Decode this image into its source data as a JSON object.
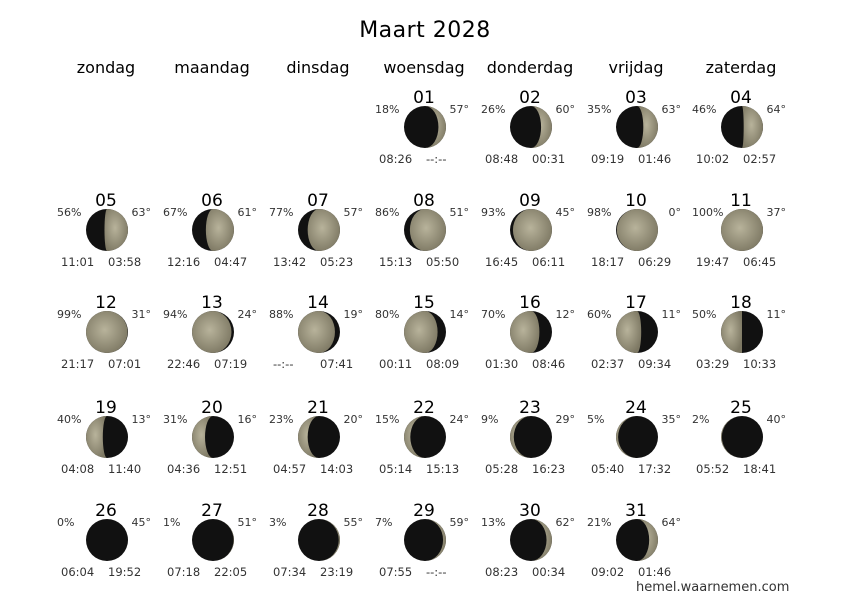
{
  "title": "Maart 2028",
  "weekdays": [
    "zondag",
    "maandag",
    "dinsdag",
    "woensdag",
    "donderdag",
    "vrijdag",
    "zaterdag"
  ],
  "colors": {
    "lit": "#a9a48c",
    "lit_shadow": "#7d7863",
    "dark": "#111111",
    "text": "#333333"
  },
  "credit": "hemel.waarnemen.com",
  "days": [
    {
      "day": "01",
      "col": 3,
      "row": 0,
      "illum": "18%",
      "alt": "57°",
      "rise": "08:26",
      "set": "--:--",
      "waxing": true,
      "frac": 0.18
    },
    {
      "day": "02",
      "col": 4,
      "row": 0,
      "illum": "26%",
      "alt": "60°",
      "rise": "08:48",
      "set": "00:31",
      "waxing": true,
      "frac": 0.26
    },
    {
      "day": "03",
      "col": 5,
      "row": 0,
      "illum": "35%",
      "alt": "63°",
      "rise": "09:19",
      "set": "01:46",
      "waxing": true,
      "frac": 0.35
    },
    {
      "day": "04",
      "col": 6,
      "row": 0,
      "illum": "46%",
      "alt": "64°",
      "rise": "10:02",
      "set": "02:57",
      "waxing": true,
      "frac": 0.46
    },
    {
      "day": "05",
      "col": 0,
      "row": 1,
      "illum": "56%",
      "alt": "63°",
      "rise": "11:01",
      "set": "03:58",
      "waxing": true,
      "frac": 0.56
    },
    {
      "day": "06",
      "col": 1,
      "row": 1,
      "illum": "67%",
      "alt": "61°",
      "rise": "12:16",
      "set": "04:47",
      "waxing": true,
      "frac": 0.67
    },
    {
      "day": "07",
      "col": 2,
      "row": 1,
      "illum": "77%",
      "alt": "57°",
      "rise": "13:42",
      "set": "05:23",
      "waxing": true,
      "frac": 0.77
    },
    {
      "day": "08",
      "col": 3,
      "row": 1,
      "illum": "86%",
      "alt": "51°",
      "rise": "15:13",
      "set": "05:50",
      "waxing": true,
      "frac": 0.86
    },
    {
      "day": "09",
      "col": 4,
      "row": 1,
      "illum": "93%",
      "alt": "45°",
      "rise": "16:45",
      "set": "06:11",
      "waxing": true,
      "frac": 0.93
    },
    {
      "day": "10",
      "col": 5,
      "row": 1,
      "illum": "98%",
      "alt": "0°",
      "rise": "18:17",
      "set": "06:29",
      "waxing": true,
      "frac": 0.98
    },
    {
      "day": "11",
      "col": 6,
      "row": 1,
      "illum": "100%",
      "alt": "37°",
      "rise": "19:47",
      "set": "06:45",
      "waxing": true,
      "frac": 1.0
    },
    {
      "day": "12",
      "col": 0,
      "row": 2,
      "illum": "99%",
      "alt": "31°",
      "rise": "21:17",
      "set": "07:01",
      "waxing": false,
      "frac": 0.99
    },
    {
      "day": "13",
      "col": 1,
      "row": 2,
      "illum": "94%",
      "alt": "24°",
      "rise": "22:46",
      "set": "07:19",
      "waxing": false,
      "frac": 0.94
    },
    {
      "day": "14",
      "col": 2,
      "row": 2,
      "illum": "88%",
      "alt": "19°",
      "rise": "--:--",
      "set": "07:41",
      "waxing": false,
      "frac": 0.88
    },
    {
      "day": "15",
      "col": 3,
      "row": 2,
      "illum": "80%",
      "alt": "14°",
      "rise": "00:11",
      "set": "08:09",
      "waxing": false,
      "frac": 0.8
    },
    {
      "day": "16",
      "col": 4,
      "row": 2,
      "illum": "70%",
      "alt": "12°",
      "rise": "01:30",
      "set": "08:46",
      "waxing": false,
      "frac": 0.7
    },
    {
      "day": "17",
      "col": 5,
      "row": 2,
      "illum": "60%",
      "alt": "11°",
      "rise": "02:37",
      "set": "09:34",
      "waxing": false,
      "frac": 0.6
    },
    {
      "day": "18",
      "col": 6,
      "row": 2,
      "illum": "50%",
      "alt": "11°",
      "rise": "03:29",
      "set": "10:33",
      "waxing": false,
      "frac": 0.5
    },
    {
      "day": "19",
      "col": 0,
      "row": 3,
      "illum": "40%",
      "alt": "13°",
      "rise": "04:08",
      "set": "11:40",
      "waxing": false,
      "frac": 0.4
    },
    {
      "day": "20",
      "col": 1,
      "row": 3,
      "illum": "31%",
      "alt": "16°",
      "rise": "04:36",
      "set": "12:51",
      "waxing": false,
      "frac": 0.31
    },
    {
      "day": "21",
      "col": 2,
      "row": 3,
      "illum": "23%",
      "alt": "20°",
      "rise": "04:57",
      "set": "14:03",
      "waxing": false,
      "frac": 0.23
    },
    {
      "day": "22",
      "col": 3,
      "row": 3,
      "illum": "15%",
      "alt": "24°",
      "rise": "05:14",
      "set": "15:13",
      "waxing": false,
      "frac": 0.15
    },
    {
      "day": "23",
      "col": 4,
      "row": 3,
      "illum": "9%",
      "alt": "29°",
      "rise": "05:28",
      "set": "16:23",
      "waxing": false,
      "frac": 0.09
    },
    {
      "day": "24",
      "col": 5,
      "row": 3,
      "illum": "5%",
      "alt": "35°",
      "rise": "05:40",
      "set": "17:32",
      "waxing": false,
      "frac": 0.05
    },
    {
      "day": "25",
      "col": 6,
      "row": 3,
      "illum": "2%",
      "alt": "40°",
      "rise": "05:52",
      "set": "18:41",
      "waxing": false,
      "frac": 0.02
    },
    {
      "day": "26",
      "col": 0,
      "row": 4,
      "illum": "0%",
      "alt": "45°",
      "rise": "06:04",
      "set": "19:52",
      "waxing": true,
      "frac": 0.0
    },
    {
      "day": "27",
      "col": 1,
      "row": 4,
      "illum": "1%",
      "alt": "51°",
      "rise": "07:18",
      "set": "22:05",
      "waxing": true,
      "frac": 0.01
    },
    {
      "day": "28",
      "col": 2,
      "row": 4,
      "illum": "3%",
      "alt": "55°",
      "rise": "07:34",
      "set": "23:19",
      "waxing": true,
      "frac": 0.03
    },
    {
      "day": "29",
      "col": 3,
      "row": 4,
      "illum": "7%",
      "alt": "59°",
      "rise": "07:55",
      "set": "--:--",
      "waxing": true,
      "frac": 0.07
    },
    {
      "day": "30",
      "col": 4,
      "row": 4,
      "illum": "13%",
      "alt": "62°",
      "rise": "08:23",
      "set": "00:34",
      "waxing": true,
      "frac": 0.13
    },
    {
      "day": "31",
      "col": 5,
      "row": 4,
      "illum": "21%",
      "alt": "64°",
      "rise": "09:02",
      "set": "01:46",
      "waxing": true,
      "frac": 0.21
    }
  ]
}
